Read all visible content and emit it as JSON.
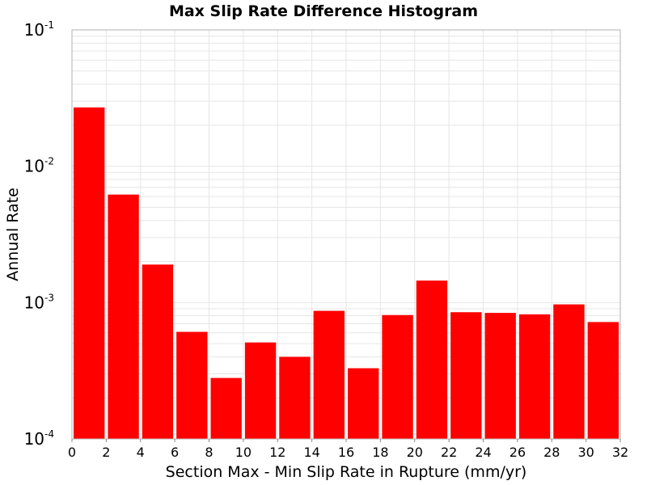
{
  "chart_data": {
    "type": "bar",
    "title": "Max Slip Rate Difference Histogram",
    "xlabel": "Section Max - Min Slip Rate in Rupture (mm/yr)",
    "ylabel": "Annual Rate",
    "xlim": [
      0,
      32
    ],
    "ylim": [
      0.0001,
      0.1
    ],
    "yscale": "log",
    "grid": true,
    "bar_color": "#ff0000",
    "grid_color": "#e6e6e6",
    "frame_color": "#b0b0b0",
    "x_ticks": [
      "0",
      "2",
      "4",
      "6",
      "8",
      "10",
      "12",
      "14",
      "16",
      "18",
      "20",
      "22",
      "24",
      "26",
      "28",
      "30",
      "32"
    ],
    "y_ticks": [
      {
        "base": "10",
        "exp": "-4"
      },
      {
        "base": "10",
        "exp": "-3"
      },
      {
        "base": "10",
        "exp": "-2"
      },
      {
        "base": "10",
        "exp": "-1"
      }
    ],
    "bins": [
      {
        "x0": 0,
        "x1": 2,
        "value": 0.027
      },
      {
        "x0": 2,
        "x1": 4,
        "value": 0.0062
      },
      {
        "x0": 4,
        "x1": 6,
        "value": 0.0019
      },
      {
        "x0": 6,
        "x1": 8,
        "value": 0.00061
      },
      {
        "x0": 8,
        "x1": 10,
        "value": 0.00028
      },
      {
        "x0": 10,
        "x1": 12,
        "value": 0.00051
      },
      {
        "x0": 12,
        "x1": 14,
        "value": 0.0004
      },
      {
        "x0": 14,
        "x1": 16,
        "value": 0.00087
      },
      {
        "x0": 16,
        "x1": 18,
        "value": 0.00033
      },
      {
        "x0": 18,
        "x1": 20,
        "value": 0.00081
      },
      {
        "x0": 20,
        "x1": 22,
        "value": 0.00145
      },
      {
        "x0": 22,
        "x1": 24,
        "value": 0.00085
      },
      {
        "x0": 24,
        "x1": 26,
        "value": 0.00084
      },
      {
        "x0": 26,
        "x1": 28,
        "value": 0.00082
      },
      {
        "x0": 28,
        "x1": 30,
        "value": 0.00097
      },
      {
        "x0": 30,
        "x1": 32,
        "value": 0.00072
      }
    ]
  }
}
